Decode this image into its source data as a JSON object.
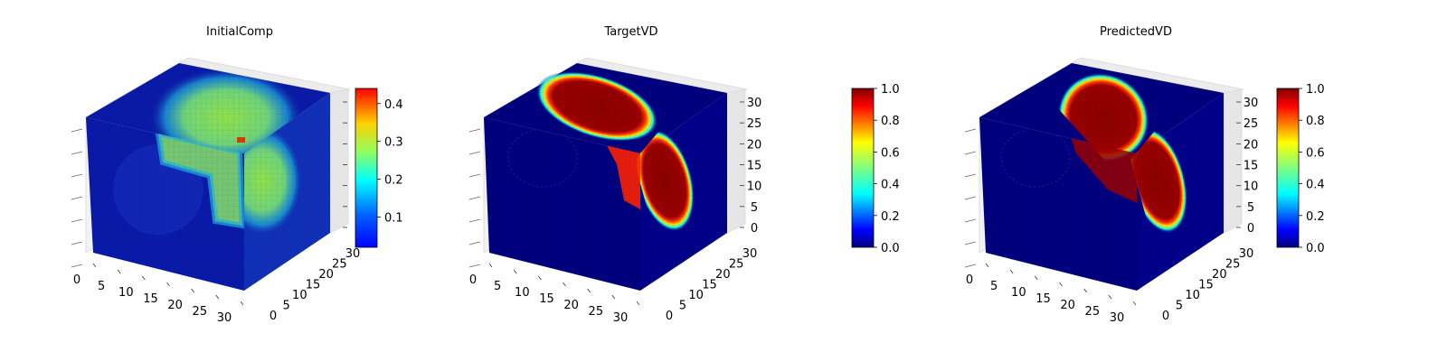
{
  "figure": {
    "colormap": "jet",
    "colormap_stops": [
      "#00007f",
      "#0000ff",
      "#007fff",
      "#00ffff",
      "#7fff7f",
      "#ffff00",
      "#ff7f00",
      "#ff0000",
      "#7f0000"
    ]
  },
  "chart_data": [
    {
      "type": "heatmap",
      "subtype": "3d-voxel",
      "title": "InitialComp",
      "x_ticks": [
        "0",
        "5",
        "10",
        "15",
        "20",
        "25",
        "30"
      ],
      "y_ticks": [
        "0",
        "5",
        "10",
        "15",
        "20",
        "25",
        "30"
      ],
      "z_ticks": [
        "",
        "",
        "",
        "",
        "",
        "",
        ""
      ],
      "xlim": [
        0,
        32
      ],
      "ylim": [
        0,
        32
      ],
      "zlim": [
        0,
        32
      ],
      "colorbar": {
        "min": 0.02,
        "max": 0.44,
        "ticks": [
          "0.1",
          "0.2",
          "0.3",
          "0.4"
        ],
        "tick_values": [
          0.1,
          0.2,
          0.3,
          0.4
        ]
      },
      "value_range": [
        0.02,
        0.44
      ],
      "base_color": "#0a1aa8",
      "front_blobs": [
        {
          "shape": "ellipse",
          "cx": 0.6,
          "cy": 0.35,
          "rx": 0.28,
          "ry": 0.2,
          "value": 0.18
        }
      ],
      "top_blobs": [
        {
          "cx": 0.55,
          "cy": 0.55,
          "rx": 0.3,
          "ry": 0.35,
          "value": 0.3
        }
      ],
      "side_blobs": [
        {
          "cx": 0.3,
          "cy": 0.4,
          "rx": 0.35,
          "ry": 0.3,
          "value": 0.3
        }
      ]
    },
    {
      "type": "heatmap",
      "subtype": "3d-voxel",
      "title": "TargetVD",
      "x_ticks": [
        "0",
        "5",
        "10",
        "15",
        "20",
        "25",
        "30"
      ],
      "y_ticks": [
        "0",
        "5",
        "10",
        "15",
        "20",
        "25",
        "30"
      ],
      "z_ticks": [
        "0",
        "5",
        "10",
        "15",
        "20",
        "25",
        "30"
      ],
      "xlim": [
        0,
        32
      ],
      "ylim": [
        0,
        32
      ],
      "zlim": [
        0,
        32
      ],
      "colorbar": {
        "min": 0.0,
        "max": 1.0,
        "ticks": [
          "0.0",
          "0.2",
          "0.4",
          "0.6",
          "0.8",
          "1.0"
        ],
        "tick_values": [
          0,
          0.2,
          0.4,
          0.6,
          0.8,
          1.0
        ]
      },
      "value_range": [
        0.0,
        1.0
      ],
      "base_color": "#00007f"
    },
    {
      "type": "heatmap",
      "subtype": "3d-voxel",
      "title": "PredictedVD",
      "x_ticks": [
        "0",
        "5",
        "10",
        "15",
        "20",
        "25",
        "30"
      ],
      "y_ticks": [
        "0",
        "5",
        "10",
        "15",
        "20",
        "25",
        "30"
      ],
      "z_ticks": [
        "0",
        "5",
        "10",
        "15",
        "20",
        "25",
        "30"
      ],
      "xlim": [
        0,
        32
      ],
      "ylim": [
        0,
        32
      ],
      "zlim": [
        0,
        32
      ],
      "colorbar": {
        "min": 0.0,
        "max": 1.0,
        "ticks": [
          "0.0",
          "0.2",
          "0.4",
          "0.6",
          "0.8",
          "1.0"
        ],
        "tick_values": [
          0,
          0.2,
          0.4,
          0.6,
          0.8,
          1.0
        ]
      },
      "value_range": [
        0.0,
        1.0
      ],
      "base_color": "#00007f"
    }
  ]
}
